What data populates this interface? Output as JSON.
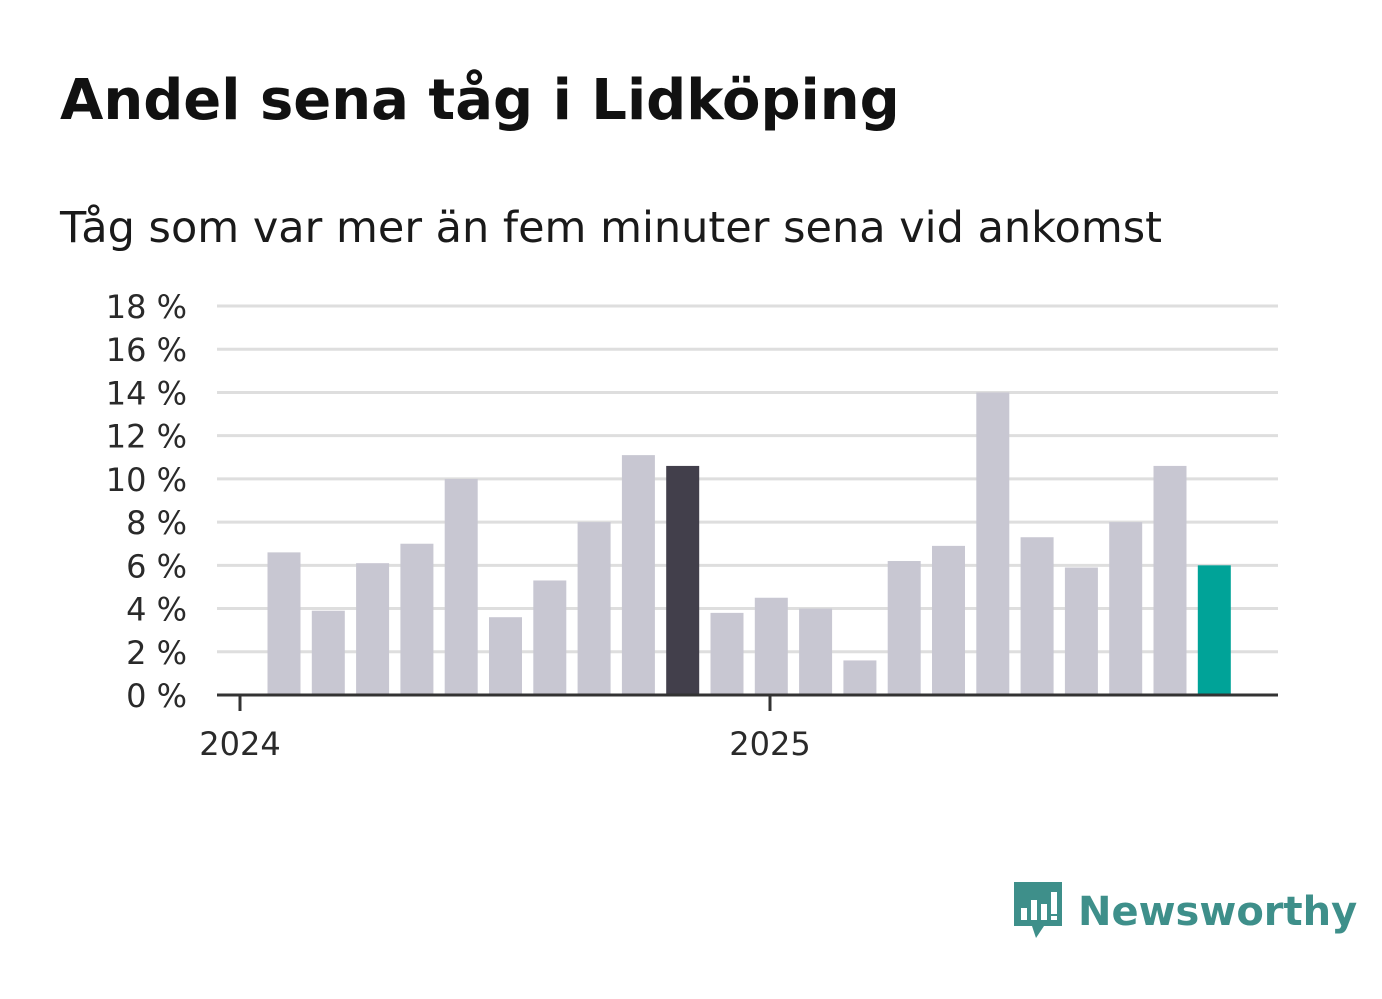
{
  "title": "Andel sena tåg i Lidköping",
  "subtitle": "Tåg som var mer än fem minuter sena vid ankomst",
  "colors": {
    "bar_default": "#c8c7d2",
    "bar_highlight_dark": "#423f4b",
    "bar_highlight_latest": "#00a398",
    "grid": "#dedede",
    "axis": "#333333",
    "brand": "#3e8f8a"
  },
  "chart_data": {
    "type": "bar",
    "title": "Andel sena tåg i Lidköping",
    "subtitle": "Tåg som var mer än fem minuter sena vid ankomst",
    "x_tick_labels": [
      "2024",
      "2025"
    ],
    "y_ticks": [
      0,
      2,
      4,
      6,
      8,
      10,
      12,
      14,
      16,
      18
    ],
    "y_tick_suffix": " %",
    "ylim": [
      0,
      18
    ],
    "grid": true,
    "values": [
      6.6,
      3.9,
      6.1,
      7.0,
      10.0,
      3.6,
      5.3,
      8.0,
      11.1,
      10.6,
      3.8,
      4.5,
      4.0,
      1.6,
      6.2,
      6.9,
      14.0,
      7.3,
      5.9,
      8.0,
      10.6,
      6.0
    ],
    "highlights": [
      {
        "index": 9,
        "color_key": "bar_highlight_dark"
      },
      {
        "index": 21,
        "color_key": "bar_highlight_latest"
      }
    ]
  },
  "logo": {
    "text": "Newsworthy",
    "icon": "newsworthy-chart-bubble-icon"
  }
}
